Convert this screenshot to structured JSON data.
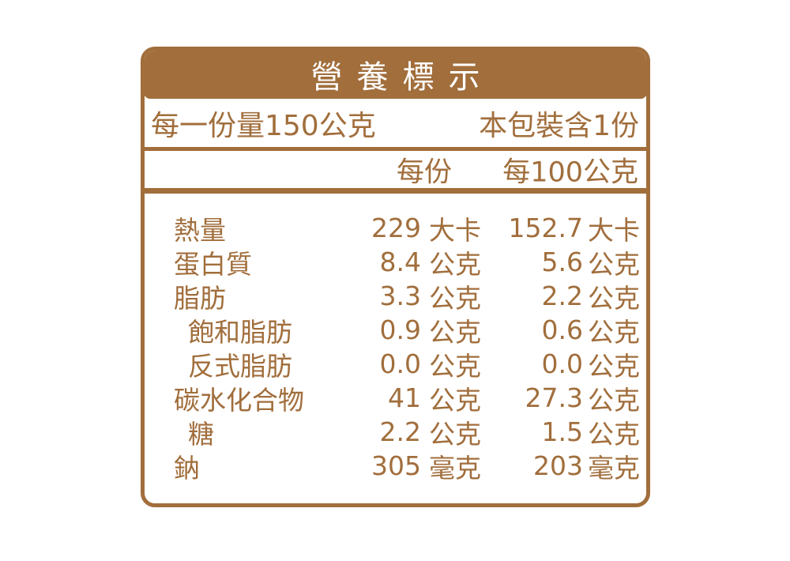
{
  "label": {
    "title": "營養標示",
    "serving_info": {
      "serving_size": "每一份量150公克",
      "servings_per_package": "本包裝含1份"
    },
    "columns": {
      "per_serving": "每份",
      "per_100g": "每100公克"
    },
    "rows": [
      {
        "name": "熱量",
        "indent": false,
        "per_serving": {
          "value": "229",
          "unit": "大卡"
        },
        "per_100g": {
          "value": "152.7",
          "unit": "大卡"
        }
      },
      {
        "name": "蛋白質",
        "indent": false,
        "per_serving": {
          "value": "8.4",
          "unit": "公克"
        },
        "per_100g": {
          "value": "5.6",
          "unit": "公克"
        }
      },
      {
        "name": "脂肪",
        "indent": false,
        "per_serving": {
          "value": "3.3",
          "unit": "公克"
        },
        "per_100g": {
          "value": "2.2",
          "unit": "公克"
        }
      },
      {
        "name": "飽和脂肪",
        "indent": true,
        "per_serving": {
          "value": "0.9",
          "unit": "公克"
        },
        "per_100g": {
          "value": "0.6",
          "unit": "公克"
        }
      },
      {
        "name": "反式脂肪",
        "indent": true,
        "per_serving": {
          "value": "0.0",
          "unit": "公克"
        },
        "per_100g": {
          "value": "0.0",
          "unit": "公克"
        }
      },
      {
        "name": "碳水化合物",
        "indent": false,
        "per_serving": {
          "value": "41",
          "unit": "公克"
        },
        "per_100g": {
          "value": "27.3",
          "unit": "公克"
        }
      },
      {
        "name": "糖",
        "indent": true,
        "per_serving": {
          "value": "2.2",
          "unit": "公克"
        },
        "per_100g": {
          "value": "1.5",
          "unit": "公克"
        }
      },
      {
        "name": "鈉",
        "indent": false,
        "per_serving": {
          "value": "305",
          "unit": "毫克"
        },
        "per_100g": {
          "value": "203",
          "unit": "毫克"
        }
      }
    ],
    "colors": {
      "brown": "#A16E3C",
      "title_text": "#FFFFFF",
      "background": "#FFFFFF"
    }
  }
}
